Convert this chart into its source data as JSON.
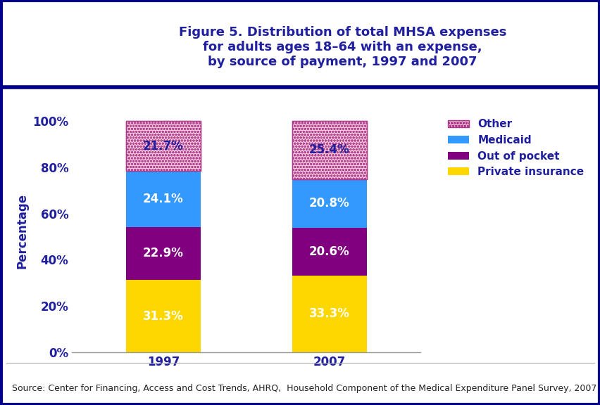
{
  "title": "Figure 5. Distribution of total MHSA expenses\nfor adults ages 18–64 with an expense,\nby source of payment, 1997 and 2007",
  "ylabel": "Percentage",
  "categories": [
    "1997",
    "2007"
  ],
  "series": {
    "Private insurance": [
      31.3,
      33.3
    ],
    "Out of pocket": [
      22.9,
      20.6
    ],
    "Medicaid": [
      24.1,
      20.8
    ],
    "Other": [
      21.7,
      25.4
    ]
  },
  "colors": {
    "Private insurance": "#FFD700",
    "Out of pocket": "#800080",
    "Medicaid": "#3399FF"
  },
  "text_color": "#1F1F9F",
  "bar_width": 0.45,
  "ylim": [
    0,
    105
  ],
  "source_text": "Source: Center for Financing, Access and Cost Trends, AHRQ,  Household Component of the Medical Expenditure Panel Survey, 2007",
  "title_fontsize": 13,
  "label_fontsize": 12,
  "legend_fontsize": 11,
  "axis_fontsize": 12,
  "source_fontsize": 9,
  "background_color": "#FFFFFF",
  "border_color": "#00008B",
  "other_face": "#F5C0D8",
  "other_edge": "#AA3388"
}
